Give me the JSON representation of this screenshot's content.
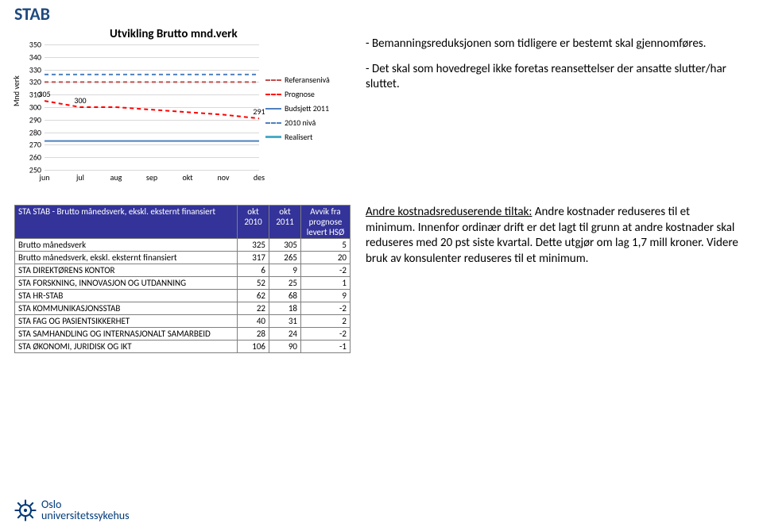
{
  "title": "STAB",
  "chart": {
    "title": "Utvikling Brutto mnd.verk",
    "ylabel": "Mnd verk",
    "ylim": [
      250,
      350
    ],
    "ytick_step": 10,
    "xcategories": [
      "jun",
      "jul",
      "aug",
      "sep",
      "okt",
      "nov",
      "des"
    ],
    "grid_color": "#d9d9d9",
    "background": "#ffffff",
    "series": {
      "referansenivaa": {
        "label": "Referansenivå",
        "color": "#c0504d",
        "dash": "5,4",
        "width": 2,
        "y": 320
      },
      "prognose": {
        "label": "Prognose",
        "color": "#ff0000",
        "dash": "5,4",
        "width": 2,
        "points": [
          305,
          300,
          300,
          298,
          296,
          294,
          291
        ],
        "labels": {
          "0": "305",
          "1": "300",
          "6": "291"
        }
      },
      "budsjett": {
        "label": "Budsjett 2011",
        "color": "#4f81bd",
        "dash": "",
        "width": 2,
        "y": 273
      },
      "nivaa2010": {
        "label": "2010 nivå",
        "color": "#4f81bd",
        "dash": "5,4",
        "width": 2,
        "y": 326
      },
      "realisert": {
        "label": "Realisert",
        "color": "#4bacc6",
        "dash": "",
        "width": 3,
        "empty": true
      }
    }
  },
  "bullets": [
    "- Bemanningsreduksjonen som tidligere er bestemt skal gjennomføres.",
    "- Det skal som hovedregel ikke foretas reansettelser der ansatte slutter/har sluttet."
  ],
  "table": {
    "header": {
      "rowhdr": "STA STAB - Brutto månedsverk, ekskl. eksternt finansiert",
      "c1": "okt 2010",
      "c2": "okt 2011",
      "c3": "Avvik fra prognose levert HSØ"
    },
    "rows": [
      {
        "label": "Brutto månedsverk",
        "c1": 325,
        "c2": 305,
        "c3": 5
      },
      {
        "label": "Brutto månedsverk, ekskl. eksternt finansiert",
        "c1": 317,
        "c2": 265,
        "c3": 20
      },
      {
        "label": "STA DIREKTØRENS KONTOR",
        "c1": 6,
        "c2": 9,
        "c3": -2
      },
      {
        "label": "STA FORSKNING, INNOVASJON OG UTDANNING",
        "c1": 52,
        "c2": 25,
        "c3": 1
      },
      {
        "label": "STA HR-STAB",
        "c1": 62,
        "c2": 68,
        "c3": 9
      },
      {
        "label": "STA KOMMUNIKASJONSSTAB",
        "c1": 22,
        "c2": 18,
        "c3": -2
      },
      {
        "label": "STA FAG OG PASIENTSIKKERHET",
        "c1": 40,
        "c2": 31,
        "c3": 2
      },
      {
        "label": "STA SAMHANDLING OG INTERNASJONALT SAMARBEID",
        "c1": 28,
        "c2": 24,
        "c3": -2
      },
      {
        "label": "STA ØKONOMI, JURIDISK OG IKT",
        "c1": 106,
        "c2": 90,
        "c3": -1
      }
    ]
  },
  "commentary_html": "<u>Andre kostnadsreduserende tiltak:</u> Andre kostnader reduseres til et minimum. Innenfor ordinær drift er det lagt til grunn at andre kostnader skal reduseres med 20 pst siste kvartal. Dette utgjør om lag 1,7 mill kroner. Videre bruk av konsulenter reduseres til et minimum.",
  "logo": {
    "l1": "Oslo",
    "l2": "universitetssykehus",
    "color": "#003a78"
  }
}
